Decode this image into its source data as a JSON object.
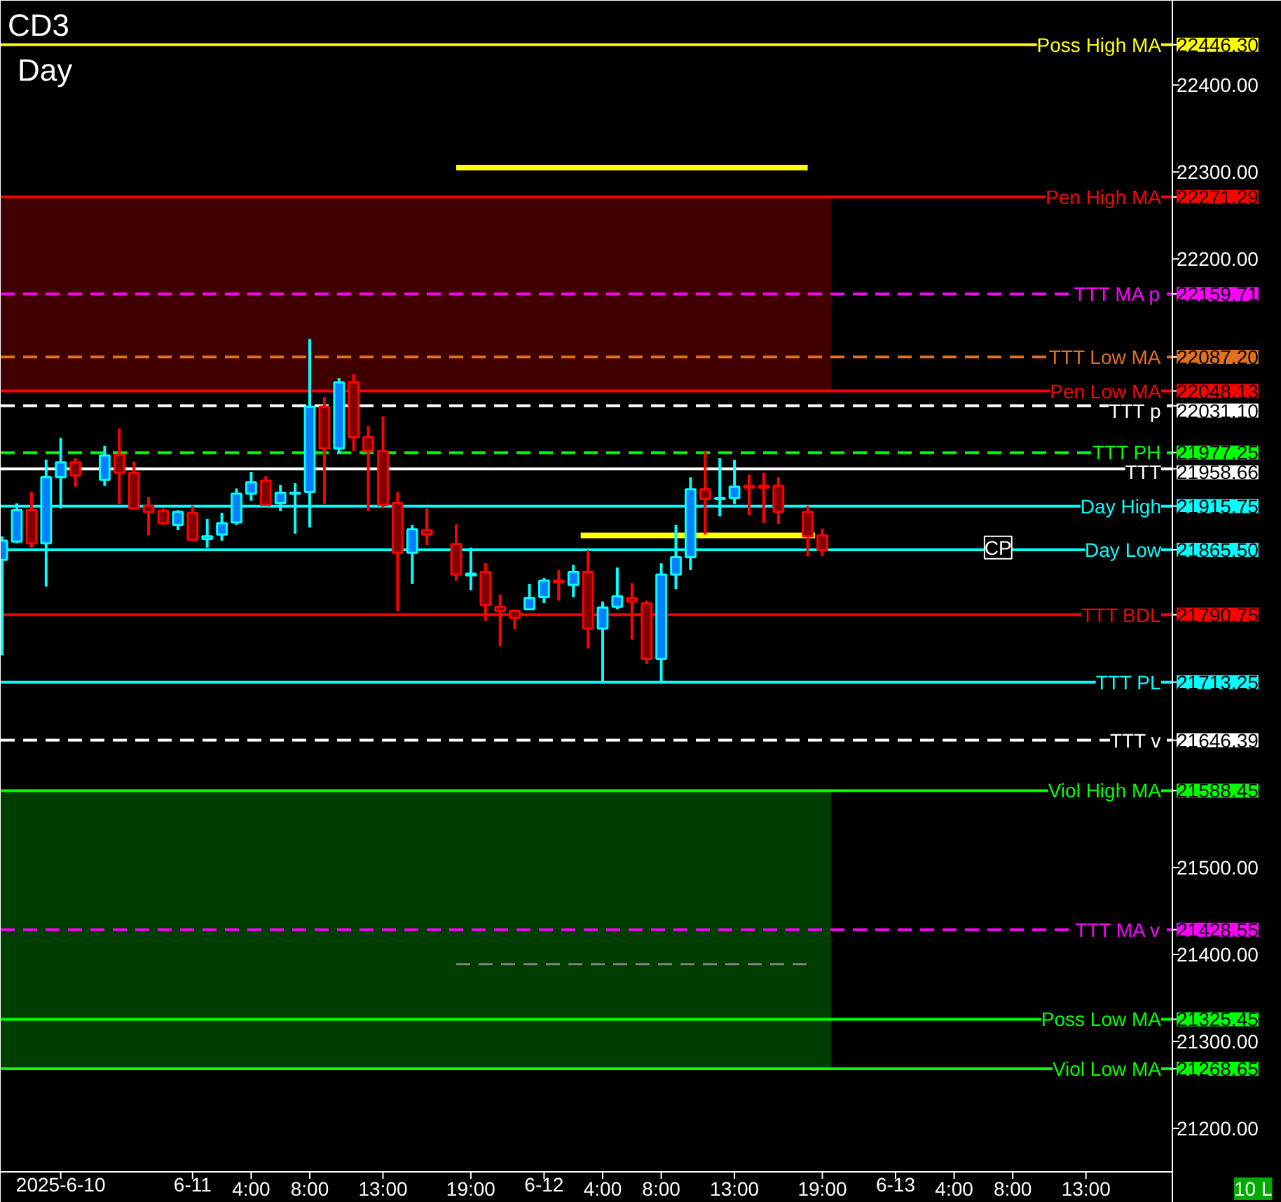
{
  "chart_data": {
    "type": "candlestick",
    "title": "CD3",
    "subtitle": "Day",
    "annotations": [
      {
        "text": "CP",
        "x": "2025-06-13T07:00",
        "y": 21868
      },
      "10 L"
    ],
    "x": [
      "2025-06-10T11:00",
      "2025-06-10T12:00",
      "2025-06-10T13:00",
      "2025-06-10T14:00",
      "2025-06-10T15:00",
      "2025-06-10T16:00",
      "2025-06-10T18:00",
      "2025-06-10T19:00",
      "2025-06-10T20:00",
      "2025-06-10T21:00",
      "2025-06-10T22:00",
      "2025-06-10T23:00",
      "2025-06-11T00:00",
      "2025-06-11T01:00",
      "2025-06-11T02:00",
      "2025-06-11T03:00",
      "2025-06-11T04:00",
      "2025-06-11T05:00",
      "2025-06-11T06:00",
      "2025-06-11T07:00",
      "2025-06-11T08:00",
      "2025-06-11T09:00",
      "2025-06-11T10:00",
      "2025-06-11T11:00",
      "2025-06-11T12:00",
      "2025-06-11T13:00",
      "2025-06-11T14:00",
      "2025-06-11T15:00",
      "2025-06-11T16:00",
      "2025-06-11T18:00",
      "2025-06-11T19:00",
      "2025-06-11T20:00",
      "2025-06-11T21:00",
      "2025-06-11T22:00",
      "2025-06-11T23:00",
      "2025-06-12T00:00",
      "2025-06-12T01:00",
      "2025-06-12T02:00",
      "2025-06-12T03:00",
      "2025-06-12T04:00",
      "2025-06-12T05:00",
      "2025-06-12T06:00",
      "2025-06-12T07:00",
      "2025-06-12T08:00",
      "2025-06-12T09:00",
      "2025-06-12T10:00",
      "2025-06-12T11:00",
      "2025-06-12T12:00",
      "2025-06-12T13:00",
      "2025-06-12T14:00",
      "2025-06-12T15:00",
      "2025-06-12T16:00",
      "2025-06-12T18:00",
      "2025-06-12T19:00"
    ],
    "ohlc": [
      [
        21854,
        21881,
        21744,
        21876
      ],
      [
        21875,
        21919,
        21873,
        21911
      ],
      [
        21911,
        21932,
        21868,
        21873
      ],
      [
        21873,
        21969,
        21823,
        21949
      ],
      [
        21949,
        21994,
        21913,
        21966
      ],
      [
        21966,
        21971,
        21938,
        21951
      ],
      [
        21946,
        21985,
        21939,
        21974
      ],
      [
        21975,
        22005,
        21918,
        21954
      ],
      [
        21954,
        21967,
        21913,
        21913
      ],
      [
        21916,
        21926,
        21882,
        21909
      ],
      [
        21910,
        21913,
        21894,
        21896
      ],
      [
        21894,
        21911,
        21888,
        21909
      ],
      [
        21908,
        21916,
        21875,
        21877
      ],
      [
        21878,
        21901,
        21868,
        21881
      ],
      [
        21883,
        21908,
        21876,
        21896
      ],
      [
        21897,
        21936,
        21894,
        21930
      ],
      [
        21930,
        21955,
        21922,
        21943
      ],
      [
        21945,
        21950,
        21917,
        21917
      ],
      [
        21919,
        21940,
        21910,
        21931
      ],
      [
        21930,
        21942,
        21884,
        21931
      ],
      [
        21932,
        22108,
        21891,
        22030
      ],
      [
        22030,
        22041,
        21918,
        21982
      ],
      [
        21982,
        22063,
        21976,
        22058
      ],
      [
        22058,
        22068,
        21979,
        21995
      ],
      [
        21995,
        22008,
        21910,
        21979
      ],
      [
        21979,
        22019,
        21913,
        21917
      ],
      [
        21919,
        21932,
        21795,
        21862
      ],
      [
        21862,
        21894,
        21826,
        21889
      ],
      [
        21888,
        21913,
        21871,
        21883
      ],
      [
        21872,
        21895,
        21830,
        21837
      ],
      [
        21836,
        21868,
        21819,
        21838
      ],
      [
        21840,
        21850,
        21784,
        21802
      ],
      [
        21800,
        21814,
        21755,
        21795
      ],
      [
        21795,
        21797,
        21774,
        21787
      ],
      [
        21797,
        21826,
        21797,
        21810
      ],
      [
        21811,
        21833,
        21804,
        21830
      ],
      [
        21830,
        21842,
        21807,
        21828
      ],
      [
        21825,
        21848,
        21811,
        21840
      ],
      [
        21840,
        21865,
        21752,
        21775
      ],
      [
        21775,
        21806,
        21714,
        21799
      ],
      [
        21800,
        21845,
        21797,
        21812
      ],
      [
        21810,
        21827,
        21762,
        21806
      ],
      [
        21804,
        21807,
        21734,
        21740
      ],
      [
        21740,
        21850,
        21714,
        21837
      ],
      [
        21837,
        21894,
        21820,
        21857
      ],
      [
        21857,
        21949,
        21842,
        21935
      ],
      [
        21935,
        21978,
        21883,
        21924
      ],
      [
        21924,
        21971,
        21904,
        21925
      ],
      [
        21925,
        21969,
        21918,
        21938
      ],
      [
        21939,
        21952,
        21905,
        21937
      ],
      [
        21939,
        21954,
        21896,
        21937
      ],
      [
        21939,
        21949,
        21895,
        21909
      ],
      [
        21909,
        21916,
        21858,
        21881
      ],
      [
        21882,
        21890,
        21858,
        21865
      ]
    ],
    "series": [
      {
        "type": "line",
        "x": [
          "2025-06-11T18:00",
          "2025-06-12T18:00"
        ],
        "values": [
          22305,
          22305
        ],
        "color": "#ffff00",
        "line_style": "solid"
      },
      {
        "type": "line",
        "x": [
          "2025-06-12T02:30",
          "2025-06-12T18:30"
        ],
        "values": [
          21882,
          21882
        ],
        "color": "#ffff00",
        "line_style": "solid"
      },
      {
        "type": "line",
        "x": [
          "2025-06-11T18:00",
          "2025-06-12T18:00"
        ],
        "values": [
          21389,
          21389
        ],
        "color": "#808080",
        "line_style": "dashed"
      }
    ],
    "xlim": [
      "2025-06-10T10:54",
      "2025-06-13T18:54"
    ],
    "ylim": [
      21150,
      22497
    ],
    "xticks": [
      {
        "value": "2025-06-10T15:00",
        "label": "2025-6-10"
      },
      {
        "value": "2025-06-11T00:00",
        "label": "6-11"
      },
      {
        "value": "2025-06-11T04:00",
        "label": "4:00"
      },
      {
        "value": "2025-06-11T08:00",
        "label": "8:00"
      },
      {
        "value": "2025-06-11T13:00",
        "label": "13:00"
      },
      {
        "value": "2025-06-11T19:00",
        "label": "19:00"
      },
      {
        "value": "2025-06-12T00:00",
        "label": "6-12"
      },
      {
        "value": "2025-06-12T04:00",
        "label": "4:00"
      },
      {
        "value": "2025-06-12T08:00",
        "label": "8:00"
      },
      {
        "value": "2025-06-12T13:00",
        "label": "13:00"
      },
      {
        "value": "2025-06-12T19:00",
        "label": "19:00"
      },
      {
        "value": "2025-06-13T00:00",
        "label": "6-13"
      },
      {
        "value": "2025-06-13T04:00",
        "label": "4:00"
      },
      {
        "value": "2025-06-13T08:00",
        "label": "8:00"
      },
      {
        "value": "2025-06-13T13:00",
        "label": "13:00"
      }
    ],
    "yticks": [
      {
        "value": 22446.3,
        "label": "22446.30"
      },
      {
        "value": 22271.29,
        "label": "22271.29"
      },
      {
        "value": 22159.71,
        "label": "22159.71"
      },
      {
        "value": 22087.2,
        "label": "22087.20"
      },
      {
        "value": 22048.13,
        "label": "22048.13"
      },
      {
        "value": 22031.1,
        "label": "22031.10"
      },
      {
        "value": 21977.25,
        "label": "21977.25"
      },
      {
        "value": 21958.66,
        "label": "21958.66"
      },
      {
        "value": 21915.75,
        "label": "21915.75"
      },
      {
        "value": 21865.5,
        "label": "21865.50"
      },
      {
        "value": 21790.75,
        "label": "21790.75"
      },
      {
        "value": 21713.25,
        "label": "21713.25"
      },
      {
        "value": 21646.39,
        "label": "21646.39"
      },
      {
        "value": 21588.45,
        "label": "21588.45"
      },
      {
        "value": 21428.55,
        "label": "21428.55"
      },
      {
        "value": 21325.45,
        "label": "21325.45"
      },
      {
        "value": 21268.65,
        "label": "21268.65"
      },
      {
        "value": 22400,
        "label": "22400.00"
      },
      {
        "value": 22300,
        "label": "22300.00"
      },
      {
        "value": 22200,
        "label": "22200.00"
      },
      {
        "value": 21500,
        "label": "21500.00"
      },
      {
        "value": 21400,
        "label": "21400.00"
      },
      {
        "value": 21300,
        "label": "21300.00"
      },
      {
        "value": 21200,
        "label": "21200.00"
      }
    ],
    "bands": [
      {
        "axis": "y",
        "from": 22048.13,
        "to": 22271.29,
        "color": "#400000"
      },
      {
        "axis": "y",
        "from": 21268.65,
        "to": 21588.45,
        "color": "#003d00"
      }
    ],
    "ref_lines": [
      {
        "axis": "y",
        "value": 22446.3,
        "label": "Poss High MA",
        "color": "#ffff00",
        "line_style": "solid"
      },
      {
        "axis": "y",
        "value": 22271.29,
        "label": "Pen High MA",
        "color": "#ff0000",
        "line_style": "solid"
      },
      {
        "axis": "y",
        "value": 22159.71,
        "label": "TTT MA p",
        "color": "#ff00ff",
        "line_style": "dashed"
      },
      {
        "axis": "y",
        "value": 22087.2,
        "label": "TTT Low MA",
        "color": "#e07020",
        "line_style": "dashed"
      },
      {
        "axis": "y",
        "value": 22048.13,
        "label": "Pen Low MA",
        "color": "#ff0000",
        "line_style": "solid"
      },
      {
        "axis": "y",
        "value": 22031.1,
        "label": "TTT p",
        "color": "#ffffff",
        "line_style": "dashed"
      },
      {
        "axis": "y",
        "value": 21977.25,
        "label": "TTT PH",
        "color": "#00ff00",
        "line_style": "dashed"
      },
      {
        "axis": "y",
        "value": 21958.66,
        "label": "TTT",
        "color": "#ffffff",
        "line_style": "solid"
      },
      {
        "axis": "y",
        "value": 21915.75,
        "label": "Day High",
        "color": "#00ffff",
        "line_style": "solid"
      },
      {
        "axis": "y",
        "value": 21865.5,
        "label": "Day Low",
        "color": "#00ffff",
        "line_style": "solid"
      },
      {
        "axis": "y",
        "value": 21790.75,
        "label": "TTT BDL",
        "color": "#ff0000",
        "line_style": "solid"
      },
      {
        "axis": "y",
        "value": 21713.25,
        "label": "TTT PL",
        "color": "#00ffff",
        "line_style": "solid"
      },
      {
        "axis": "y",
        "value": 21646.39,
        "label": "TTT v",
        "color": "#ffffff",
        "line_style": "dashed"
      },
      {
        "axis": "y",
        "value": 21588.45,
        "label": "Viol High MA",
        "color": "#00ff00",
        "line_style": "solid"
      },
      {
        "axis": "y",
        "value": 21428.55,
        "label": "TTT MA v",
        "color": "#ff00ff",
        "line_style": "dashed"
      },
      {
        "axis": "y",
        "value": 21325.45,
        "label": "Poss Low MA",
        "color": "#00ff00",
        "line_style": "solid"
      },
      {
        "axis": "y",
        "value": 21268.65,
        "label": "Viol Low MA",
        "color": "#00ff00",
        "line_style": "solid"
      }
    ]
  }
}
